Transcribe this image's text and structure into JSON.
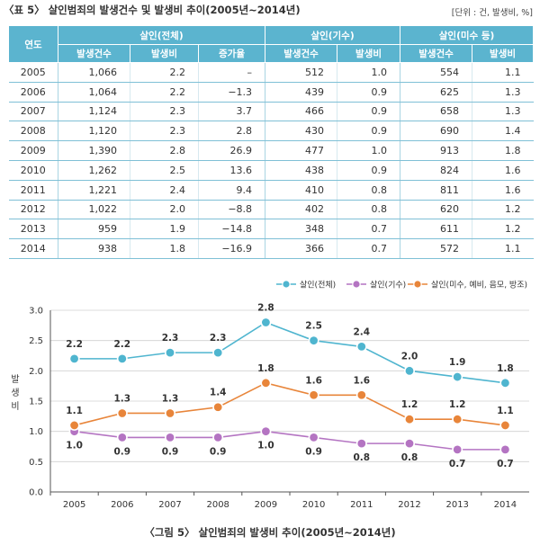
{
  "table": {
    "title": "〈표 5〉 살인범죄의 발생건수 및 발생비 추이(2005년~2014년)",
    "unit": "[단위 : 건, 발생비, %]",
    "year_header": "연도",
    "groups": [
      "살인(전체)",
      "살인(기수)",
      "살인(미수 등)"
    ],
    "subheaders": [
      "발생건수",
      "발생비",
      "증가율",
      "발생건수",
      "발생비",
      "발생건수",
      "발생비"
    ],
    "rows": [
      [
        "2005",
        "1,066",
        "2.2",
        "–",
        "512",
        "1.0",
        "554",
        "1.1"
      ],
      [
        "2006",
        "1,064",
        "2.2",
        "−1.3",
        "439",
        "0.9",
        "625",
        "1.3"
      ],
      [
        "2007",
        "1,124",
        "2.3",
        "3.7",
        "466",
        "0.9",
        "658",
        "1.3"
      ],
      [
        "2008",
        "1,120",
        "2.3",
        "2.8",
        "430",
        "0.9",
        "690",
        "1.4"
      ],
      [
        "2009",
        "1,390",
        "2.8",
        "26.9",
        "477",
        "1.0",
        "913",
        "1.8"
      ],
      [
        "2010",
        "1,262",
        "2.5",
        "13.6",
        "438",
        "0.9",
        "824",
        "1.6"
      ],
      [
        "2011",
        "1,221",
        "2.4",
        "9.4",
        "410",
        "0.8",
        "811",
        "1.6"
      ],
      [
        "2012",
        "1,022",
        "2.0",
        "−8.8",
        "402",
        "0.8",
        "620",
        "1.2"
      ],
      [
        "2013",
        "959",
        "1.9",
        "−14.8",
        "348",
        "0.7",
        "611",
        "1.2"
      ],
      [
        "2014",
        "938",
        "1.8",
        "−16.9",
        "366",
        "0.7",
        "572",
        "1.1"
      ]
    ]
  },
  "figure": {
    "caption": "〈그림 5〉 살인범죄의 발생비 추이(2005년~2014년)"
  },
  "chart_data": {
    "type": "line",
    "title": "",
    "xlabel": "",
    "ylabel": "발생비",
    "ylim": [
      0,
      3.0
    ],
    "yticks": [
      "0.0",
      "0.5",
      "1.0",
      "1.5",
      "2.0",
      "2.5",
      "3.0"
    ],
    "categories": [
      "2005",
      "2006",
      "2007",
      "2008",
      "2009",
      "2010",
      "2011",
      "2012",
      "2013",
      "2014"
    ],
    "legend_position": "top-right",
    "series": [
      {
        "name": "살인(전체)",
        "color": "#4fb5cf",
        "values": [
          2.2,
          2.2,
          2.3,
          2.3,
          2.8,
          2.5,
          2.4,
          2.0,
          1.9,
          1.8
        ],
        "labels": [
          "2.2",
          "2.2",
          "2.3",
          "2.3",
          "2.8",
          "2.5",
          "2.4",
          "2.0",
          "1.9",
          "1.8"
        ]
      },
      {
        "name": "살인(기수)",
        "color": "#b474c2",
        "values": [
          1.0,
          0.9,
          0.9,
          0.9,
          1.0,
          0.9,
          0.8,
          0.8,
          0.7,
          0.7
        ],
        "labels": [
          "1.0",
          "0.9",
          "0.9",
          "0.9",
          "1.0",
          "0.9",
          "0.8",
          "0.8",
          "0.7",
          "0.7"
        ]
      },
      {
        "name": "살인(미수, 예비, 음모, 방조)",
        "color": "#e8853a",
        "values": [
          1.1,
          1.3,
          1.3,
          1.4,
          1.8,
          1.6,
          1.6,
          1.2,
          1.2,
          1.1
        ],
        "labels": [
          "1.1",
          "1.3",
          "1.3",
          "1.4",
          "1.8",
          "1.6",
          "1.6",
          "1.2",
          "1.2",
          "1.1"
        ]
      }
    ]
  }
}
